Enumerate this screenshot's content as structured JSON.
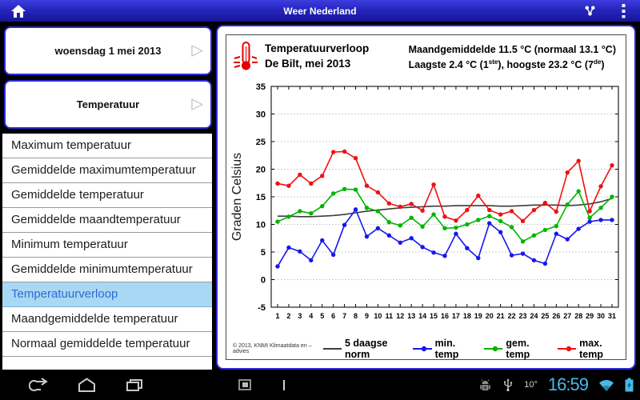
{
  "app": {
    "title": "Weer Nederland"
  },
  "sidebar": {
    "date_button_label": "woensdag 1 mei 2013",
    "category_button_label": "Temperatuur",
    "items": [
      {
        "label": "Maximum temperatuur",
        "selected": false
      },
      {
        "label": "Gemiddelde maximumtemperatuur",
        "selected": false
      },
      {
        "label": "Gemiddelde temperatuur",
        "selected": false
      },
      {
        "label": "Gemiddelde maandtemperatuur",
        "selected": false
      },
      {
        "label": "Minimum temperatuur",
        "selected": false
      },
      {
        "label": "Gemiddelde minimumtemperatuur",
        "selected": false
      },
      {
        "label": "Temperatuurverloop",
        "selected": true
      },
      {
        "label": "Maandgemiddelde temperatuur",
        "selected": false
      },
      {
        "label": "Normaal gemiddelde temperatuur",
        "selected": false
      }
    ]
  },
  "chart_panel": {
    "title": "Temperatuurverloop",
    "subtitle": "De Bilt, mei 2013",
    "stats_line1": "Maandgemiddelde 11.5 °C (normaal 13.1 °C)",
    "stats_line2_prefix": "Laagste 2.4 °C (1",
    "stats_line2_sup1": "ste",
    "stats_line2_mid": "), hoogste 23.2 °C (7",
    "stats_line2_sup2": "de",
    "stats_line2_suffix": ")",
    "copyright": "© 2013, KNMI Klimaatdata en –advies"
  },
  "chart_data": {
    "type": "line",
    "title": "Temperatuurverloop",
    "subtitle": "De Bilt, mei 2013",
    "ylabel": "Graden Celsius",
    "xlabel": "",
    "ylim": [
      -5,
      35
    ],
    "ytick_step": 5,
    "grid": "horizontal-dotted",
    "legend_position": "bottom",
    "x": [
      1,
      2,
      3,
      4,
      5,
      6,
      7,
      8,
      9,
      10,
      11,
      12,
      13,
      14,
      15,
      16,
      17,
      18,
      19,
      20,
      21,
      22,
      23,
      24,
      25,
      26,
      27,
      28,
      29,
      30,
      31
    ],
    "series": [
      {
        "name": "5 daagse norm",
        "color": "#3c3c3c",
        "marker": false,
        "values": [
          11.5,
          11.5,
          11.4,
          11.4,
          11.5,
          11.6,
          11.8,
          12.1,
          12.4,
          12.6,
          12.8,
          13.0,
          13.1,
          13.2,
          13.3,
          13.3,
          13.4,
          13.4,
          13.4,
          13.4,
          13.3,
          13.3,
          13.4,
          13.5,
          13.5,
          13.5,
          13.4,
          13.5,
          13.7,
          14.1,
          14.7
        ]
      },
      {
        "name": "min. temp",
        "color": "#1717ee",
        "marker": true,
        "values": [
          2.4,
          5.8,
          5.1,
          3.5,
          7.1,
          4.5,
          9.9,
          12.7,
          7.8,
          9.3,
          8.0,
          6.7,
          7.5,
          5.9,
          4.9,
          4.3,
          8.3,
          5.7,
          3.9,
          10.2,
          8.6,
          4.4,
          4.7,
          3.5,
          2.9,
          8.3,
          7.3,
          9.2,
          10.5,
          10.8,
          10.8
        ]
      },
      {
        "name": "gem. temp",
        "color": "#00b400",
        "marker": true,
        "values": [
          10.5,
          11.4,
          12.4,
          12.0,
          13.3,
          15.6,
          16.4,
          16.3,
          13.0,
          12.4,
          10.4,
          9.8,
          11.2,
          9.6,
          11.8,
          9.3,
          9.4,
          10.0,
          10.8,
          11.5,
          10.6,
          9.5,
          6.9,
          8.0,
          9.0,
          9.7,
          13.6,
          16.0,
          11.2,
          13.0,
          15.0
        ]
      },
      {
        "name": "max. temp",
        "color": "#ee1111",
        "marker": true,
        "values": [
          17.4,
          17.0,
          19.0,
          17.4,
          18.8,
          23.1,
          23.2,
          22.0,
          17.0,
          15.8,
          13.8,
          13.2,
          13.7,
          12.5,
          17.2,
          11.4,
          10.7,
          12.6,
          15.2,
          12.6,
          11.8,
          12.4,
          10.6,
          12.6,
          13.9,
          12.3,
          19.4,
          21.5,
          12.4,
          16.9,
          20.7
        ]
      }
    ]
  },
  "statusbar": {
    "time": "16:59",
    "temperature": "10°"
  }
}
